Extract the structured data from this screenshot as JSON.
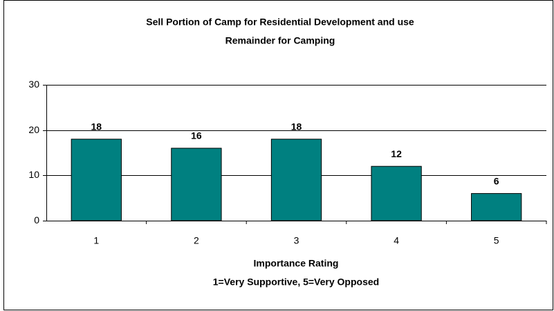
{
  "chart_data": {
    "type": "bar",
    "title": [
      "Sell Portion of Camp for Residential Development and use",
      "Remainder for Camping"
    ],
    "x_label": [
      "Importance Rating",
      "1=Very Supportive, 5=Very Opposed"
    ],
    "categories": [
      "1",
      "2",
      "3",
      "4",
      "5"
    ],
    "values": [
      18,
      16,
      18,
      12,
      6
    ],
    "color": "#008080",
    "ylim": [
      0,
      30
    ],
    "yticks": [
      0,
      10,
      20,
      30
    ],
    "grid": true
  }
}
